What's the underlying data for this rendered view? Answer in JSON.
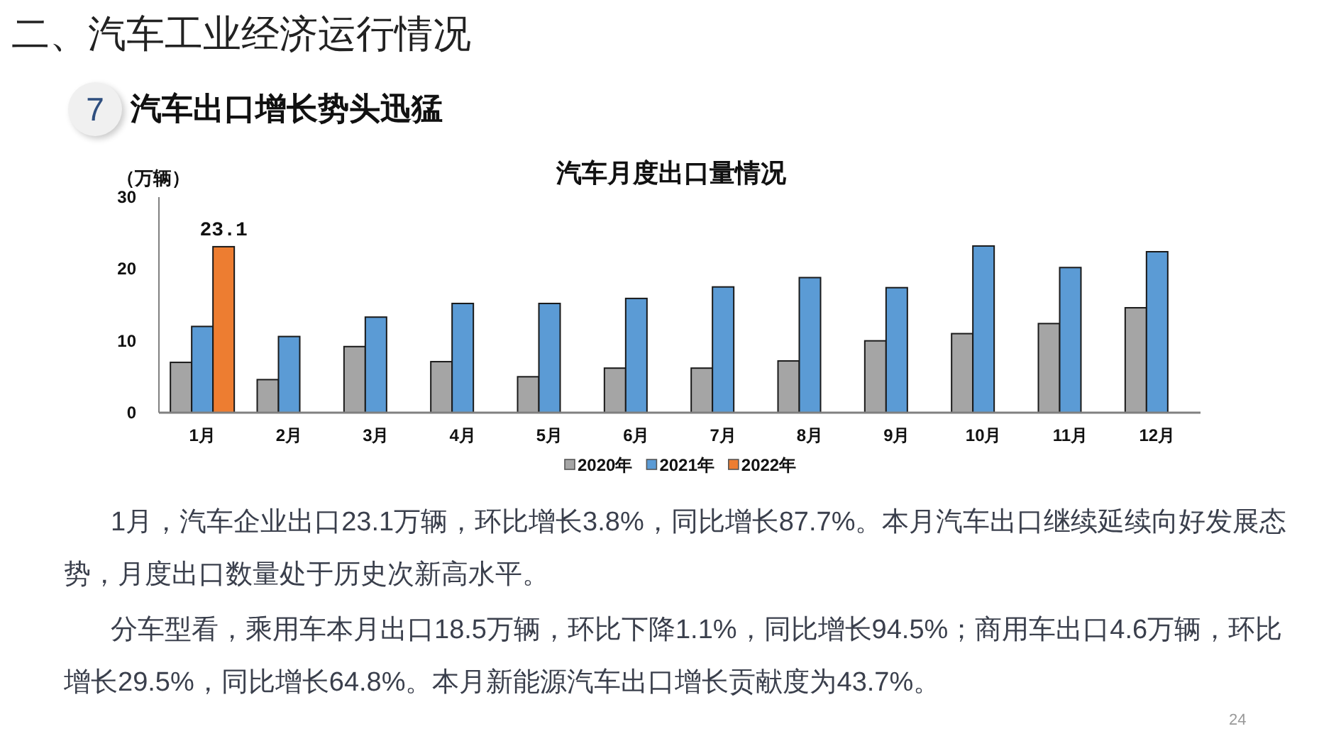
{
  "chart_data": {
    "type": "bar",
    "title": "汽车月度出口量情况",
    "ylabel": "（万辆）",
    "annotations": [
      "二、汽车工业经济运行情况",
      "7",
      "汽车出口增长势头迅猛",
      "1月，汽车企业出口23.1万辆，环比增长3.8%，同比增长87.7%。本月汽车出口继续延续向好发展态势，月度出口数量处于历史次新高水平。",
      "分车型看，乘用车本月出口18.5万辆，环比下降1.1%，同比增长94.5%；商用车出口4.6万辆，环比增长29.5%，同比增长64.8%。本月新能源汽车出口增长贡献度为43.7%。",
      "24"
    ],
    "categories": [
      "1月",
      "2月",
      "3月",
      "4月",
      "5月",
      "6月",
      "7月",
      "8月",
      "9月",
      "10月",
      "11月",
      "12月"
    ],
    "series": [
      {
        "name": "2020年",
        "color": "#a5a5a5",
        "values": [
          7.0,
          4.6,
          9.2,
          7.1,
          5.0,
          6.2,
          6.2,
          7.2,
          10.0,
          11.0,
          12.4,
          14.6
        ]
      },
      {
        "name": "2021年",
        "color": "#5b9bd5",
        "values": [
          12.0,
          10.6,
          13.3,
          15.2,
          15.2,
          15.9,
          17.5,
          18.8,
          17.4,
          23.2,
          20.2,
          22.4
        ]
      },
      {
        "name": "2022年",
        "color": "#ed7d31",
        "values": [
          23.1,
          null,
          null,
          null,
          null,
          null,
          null,
          null,
          null,
          null,
          null,
          null
        ],
        "value_labels": [
          "23.1",
          null,
          null,
          null,
          null,
          null,
          null,
          null,
          null,
          null,
          null,
          null
        ]
      }
    ],
    "ylim": [
      0,
      30
    ],
    "yticks": [
      0,
      10,
      20,
      30
    ],
    "legend": "bottom",
    "grid": false
  }
}
